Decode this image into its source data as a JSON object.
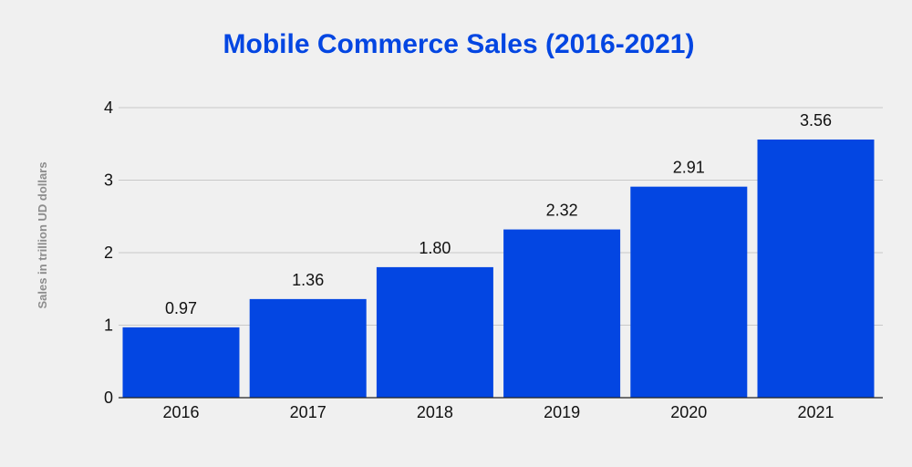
{
  "chart_data": {
    "type": "bar",
    "title": "Mobile Commerce Sales (2016-2021)",
    "xlabel": "",
    "ylabel": "Sales in trillion UD dollars",
    "categories": [
      "2016",
      "2017",
      "2018",
      "2019",
      "2020",
      "2021"
    ],
    "values": [
      0.97,
      1.36,
      1.8,
      2.32,
      2.91,
      3.56
    ],
    "data_labels": [
      "0.97",
      "1.36",
      "1.80",
      "2.32",
      "2.91",
      "3.56"
    ],
    "ylim": [
      0,
      4
    ],
    "yticks": [
      "0",
      "1",
      "2",
      "3",
      "4"
    ],
    "grid": true,
    "legend": "none",
    "colors": {
      "bar": "#0346e2",
      "title": "#0346e2",
      "text": "#111111",
      "axis_label": "#8c8c8c",
      "gridline": "#c8c8c8",
      "axis": "#222222",
      "background": "#f0f0f0"
    }
  }
}
